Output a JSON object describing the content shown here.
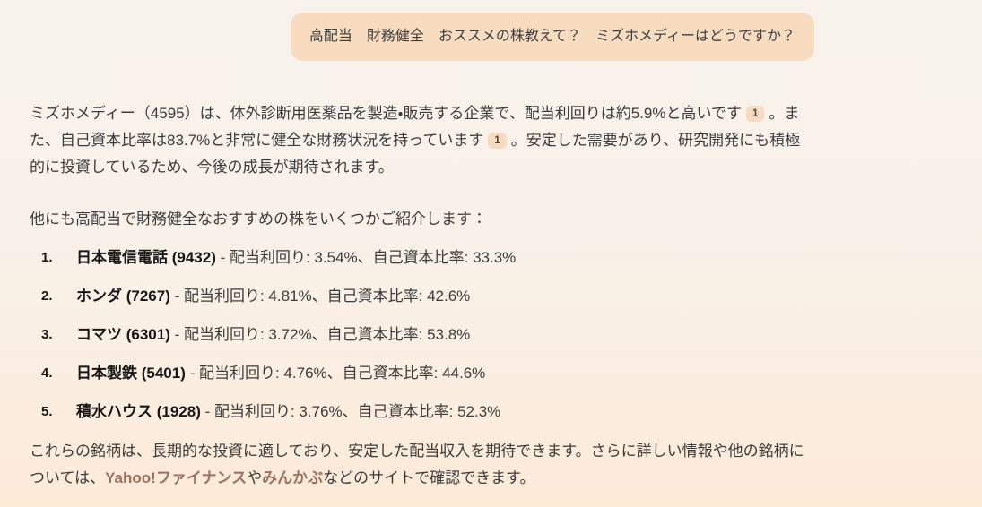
{
  "user_message": {
    "text": "高配当　財務健全　おススメの株教えて？　ミズホメディーはどうですか？"
  },
  "assistant": {
    "paragraph1": {
      "part1": "ミズホメディー（4595）は、体外診断用医薬品を製造・販売する企業で、配当利回りは約5.9%と高いです",
      "citation1": "1",
      "part2": "。また、自己資本比率は83.7%と非常に健全な財務状況を持っています",
      "citation2": "1",
      "part3": "。安定した需要があり、研究開発にも積極的に投資しているため、今後の成長が期待されます。"
    },
    "paragraph2": "他にも高配当で財務健全なおすすめの株をいくつかご紹介します：",
    "stock_list": [
      {
        "number": "1.",
        "name": "日本電信電話 (9432)",
        "separator": " - ",
        "details": "配当利回り: 3.54%、自己資本比率: 33.3%"
      },
      {
        "number": "2.",
        "name": "ホンダ (7267)",
        "separator": " - ",
        "details": "配当利回り: 4.81%、自己資本比率: 42.6%"
      },
      {
        "number": "3.",
        "name": "コマツ (6301)",
        "separator": " - ",
        "details": "配当利回り: 3.72%、自己資本比率: 53.8%"
      },
      {
        "number": "4.",
        "name": "日本製鉄 (5401)",
        "separator": " - ",
        "details": "配当利回り: 4.76%、自己資本比率: 44.6%"
      },
      {
        "number": "5.",
        "name": "積水ハウス (1928)",
        "separator": " - ",
        "details": "配当利回り: 3.76%、自己資本比率: 52.3%"
      }
    ],
    "paragraph3": {
      "part1": "これらの銘柄は、長期的な投資に適しており、安定した配当収入を期待できます。さらに詳しい情報や他の銘柄については、",
      "link1": "Yahoo!ファイナンス",
      "part2": "や",
      "link2": "みんかぶ",
      "part3": "などのサイトで確認できます。"
    }
  },
  "colors": {
    "page-bg-top": "#f7f2ec",
    "page-bg-bottom": "#fdead7",
    "bubble-bg": "#f8dcc0",
    "text": "#3c3c3c",
    "text-strong": "#171717",
    "link": "#9d7060",
    "badge-bg": "#f6dbc1",
    "badge-text": "#4e4439"
  }
}
